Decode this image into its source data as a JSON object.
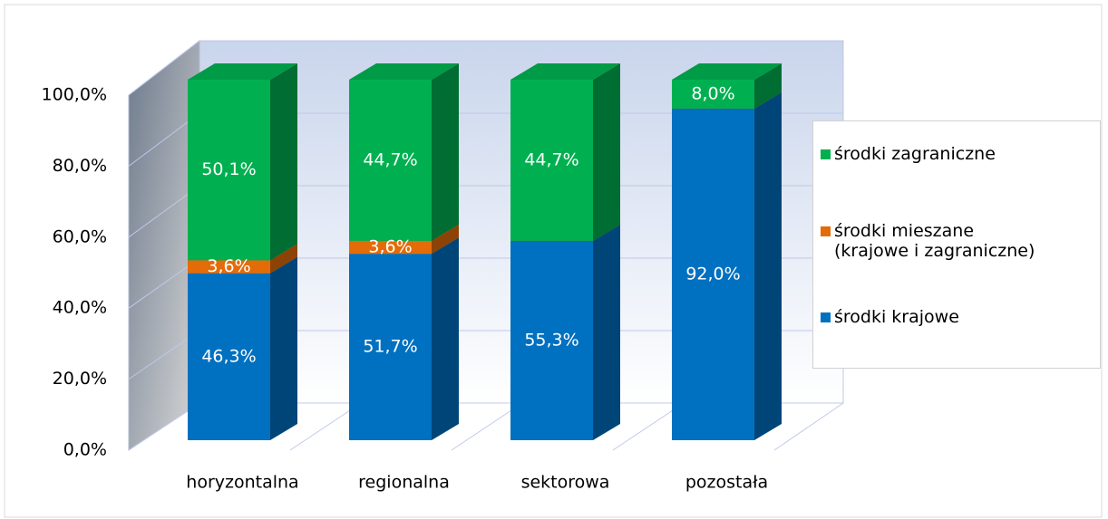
{
  "chart_data": {
    "type": "bar3d_stacked",
    "categories": [
      "horyzontalna",
      "regionalna",
      "sektorowa",
      "pozostała"
    ],
    "series": [
      {
        "name": "środki krajowe",
        "color": "#0070c0",
        "values": [
          46.3,
          51.7,
          55.3,
          92.0
        ],
        "value_labels": [
          "46,3%",
          "51,7%",
          "55,3%",
          "92,0%"
        ]
      },
      {
        "name": "środki mieszane\n(krajowe i zagraniczne)",
        "color": "#e36c09",
        "values": [
          3.6,
          3.6,
          0,
          0
        ],
        "value_labels": [
          "3,6%",
          "3,6%",
          null,
          null
        ]
      },
      {
        "name": "środki zagraniczne",
        "color": "#00b050",
        "values": [
          50.1,
          44.7,
          44.7,
          8.0
        ],
        "value_labels": [
          "50,1%",
          "44,7%",
          "44,7%",
          "8,0%"
        ]
      }
    ],
    "ylim": [
      0,
      100
    ],
    "yticks": [
      {
        "value": 0,
        "label": "0,0%"
      },
      {
        "value": 20,
        "label": "20,0%"
      },
      {
        "value": 40,
        "label": "40,0%"
      },
      {
        "value": 60,
        "label": "60,0%"
      },
      {
        "value": 80,
        "label": "80,0%"
      },
      {
        "value": 100,
        "label": "100,0%"
      }
    ],
    "grid": true,
    "legend": "right"
  }
}
